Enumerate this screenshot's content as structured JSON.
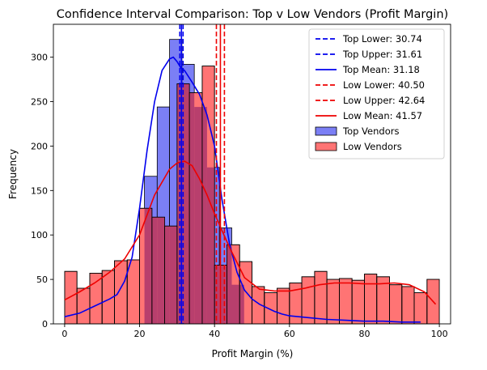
{
  "chart_data": {
    "type": "bar",
    "title": "Confidence Interval Comparison: Top v Low Vendors (Profit Margin)",
    "xlabel": "Profit Margin (%)",
    "ylabel": "Frequency",
    "xlim": [
      -3,
      103
    ],
    "ylim": [
      0,
      337
    ],
    "x_ticks": [
      0,
      20,
      40,
      60,
      80,
      100
    ],
    "y_ticks": [
      0,
      50,
      100,
      150,
      200,
      250,
      300
    ],
    "grid": false,
    "legend_position": "top-right",
    "colors": {
      "top_fill": "#7b7ff5",
      "top_line": "#0000ee",
      "low_fill": "#ff7474",
      "low_line": "#ee0000",
      "overlap_fill": "#b83f6d"
    },
    "series": [
      {
        "name": "Top Vendors",
        "kind": "histogram",
        "bin_edges": [
          21.3,
          24.7,
          28.0,
          31.3,
          34.6,
          38.0,
          41.3,
          44.6,
          47.9
        ],
        "counts": [
          166,
          244,
          320,
          292,
          244,
          176,
          108,
          44
        ]
      },
      {
        "name": "Low Vendors",
        "kind": "histogram",
        "bin_edges": [
          0,
          3.3,
          6.7,
          10,
          13.3,
          16.7,
          20,
          23.3,
          26.7,
          30,
          33.3,
          36.7,
          40,
          43.3,
          46.7,
          50,
          53.3,
          56.7,
          60,
          63.3,
          66.7,
          70,
          73.3,
          76.7,
          80,
          83.3,
          86.7,
          90,
          93.3,
          96.7,
          100
        ],
        "counts": [
          59,
          40,
          57,
          60,
          71,
          72,
          130,
          120,
          110,
          270,
          260,
          290,
          66,
          89,
          70,
          42,
          35,
          40,
          46,
          53,
          59,
          50,
          51,
          49,
          56,
          53,
          44,
          42,
          35,
          50
        ]
      },
      {
        "name": "Top Vendors KDE",
        "kind": "line",
        "x": [
          0,
          4,
          8,
          12,
          14,
          16,
          18,
          20,
          22,
          24,
          26,
          28,
          29,
          30,
          31,
          32,
          34,
          36,
          38,
          40,
          42,
          44,
          46,
          48,
          50,
          52,
          54,
          56,
          58,
          60,
          65,
          70,
          75,
          80,
          85,
          90,
          95
        ],
        "y": [
          8,
          12,
          20,
          28,
          33,
          48,
          75,
          130,
          195,
          250,
          285,
          298,
          300,
          295,
          288,
          285,
          272,
          258,
          235,
          200,
          140,
          90,
          58,
          38,
          28,
          22,
          18,
          14,
          11,
          9,
          7,
          5,
          4,
          3,
          3,
          2,
          2
        ]
      },
      {
        "name": "Low Vendors KDE",
        "kind": "line",
        "x": [
          0,
          4,
          8,
          12,
          16,
          20,
          24,
          28,
          30,
          32,
          34,
          36,
          38,
          40,
          44,
          48,
          52,
          56,
          60,
          64,
          68,
          72,
          76,
          80,
          84,
          88,
          92,
          96,
          99
        ],
        "y": [
          27,
          36,
          46,
          58,
          73,
          100,
          145,
          174,
          181,
          183,
          178,
          163,
          145,
          124,
          86,
          52,
          39,
          37,
          37,
          40,
          44,
          46,
          46,
          45,
          45,
          46,
          44,
          36,
          22
        ]
      }
    ],
    "reference_lines": [
      {
        "name": "Top Lower: 30.74",
        "x": 30.74,
        "color": "#0000ee",
        "style": "dashed"
      },
      {
        "name": "Top Upper: 31.61",
        "x": 31.61,
        "color": "#0000ee",
        "style": "dashed"
      },
      {
        "name": "Top Mean: 31.18",
        "x": 31.18,
        "color": "#0000ee",
        "style": "solid"
      },
      {
        "name": "Low Lower: 40.50",
        "x": 40.5,
        "color": "#ee0000",
        "style": "dashed"
      },
      {
        "name": "Low Upper: 42.64",
        "x": 42.64,
        "color": "#ee0000",
        "style": "dashed"
      },
      {
        "name": "Low Mean: 41.57",
        "x": 41.57,
        "color": "#ee0000",
        "style": "solid"
      }
    ],
    "legend": [
      {
        "label": "Top Lower: 30.74",
        "kind": "dashed",
        "color": "#0000ee"
      },
      {
        "label": "Top Upper: 31.61",
        "kind": "dashed",
        "color": "#0000ee"
      },
      {
        "label": "Top Mean: 31.18",
        "kind": "solid",
        "color": "#0000ee"
      },
      {
        "label": "Low Lower: 40.50",
        "kind": "dashed",
        "color": "#ee0000"
      },
      {
        "label": "Low Upper: 42.64",
        "kind": "dashed",
        "color": "#ee0000"
      },
      {
        "label": "Low Mean: 41.57",
        "kind": "solid",
        "color": "#ee0000"
      },
      {
        "label": "Top Vendors",
        "kind": "patch",
        "color": "#7b7ff5"
      },
      {
        "label": "Low Vendors",
        "kind": "patch",
        "color": "#ff7474"
      }
    ]
  }
}
